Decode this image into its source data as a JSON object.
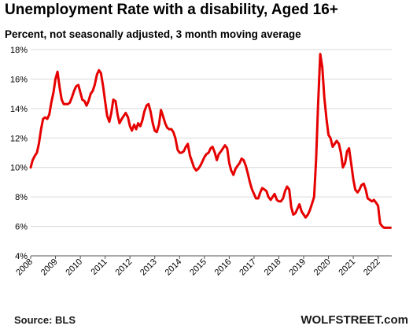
{
  "title": "Unemployment Rate with a disability,  Aged 16+",
  "subtitle": "Percent, not seasonally adjusted, 3 month moving average",
  "source": "Source: BLS",
  "watermark": "WOLFSTREET.com",
  "colors": {
    "line": "#e60000",
    "grid": "#d9d9d9",
    "axis": "#555555"
  },
  "chart_data": {
    "type": "line",
    "title": "Unemployment Rate with a disability,  Aged 16+",
    "subtitle": "Percent, not seasonally adjusted, 3 month moving average",
    "xlabel": "",
    "ylabel": "",
    "xlim": [
      2008,
      2022.55
    ],
    "ylim": [
      4,
      18
    ],
    "grid": "horizontal",
    "x_ticks": [
      "2008",
      "2009",
      "2010",
      "2011",
      "2012",
      "2013",
      "2014",
      "2015",
      "2016",
      "2017",
      "2018",
      "2019",
      "2020",
      "2021",
      "2022"
    ],
    "y_ticks": [
      "4%",
      "6%",
      "8%",
      "10%",
      "12%",
      "14%",
      "16%",
      "18%"
    ],
    "series": [
      {
        "x": [
          2008.0,
          2008.08,
          2008.17,
          2008.25,
          2008.33,
          2008.42,
          2008.5,
          2008.58,
          2008.67,
          2008.75,
          2008.83,
          2008.92,
          2009.0,
          2009.08,
          2009.17,
          2009.25,
          2009.33,
          2009.42,
          2009.5,
          2009.58,
          2009.67,
          2009.75,
          2009.83,
          2009.92,
          2010.0,
          2010.08,
          2010.17,
          2010.25,
          2010.33,
          2010.42,
          2010.5,
          2010.58,
          2010.67,
          2010.75,
          2010.83,
          2010.92,
          2011.0,
          2011.08,
          2011.17,
          2011.25,
          2011.33,
          2011.42,
          2011.5,
          2011.58,
          2011.67,
          2011.75,
          2011.83,
          2011.92,
          2012.0,
          2012.08,
          2012.17,
          2012.25,
          2012.33,
          2012.42,
          2012.5,
          2012.58,
          2012.67,
          2012.75,
          2012.83,
          2012.92,
          2013.0,
          2013.08,
          2013.17,
          2013.25,
          2013.33,
          2013.42,
          2013.5,
          2013.58,
          2013.67,
          2013.75,
          2013.83,
          2013.92,
          2014.0,
          2014.08,
          2014.17,
          2014.25,
          2014.33,
          2014.42,
          2014.5,
          2014.58,
          2014.67,
          2014.75,
          2014.83,
          2014.92,
          2015.0,
          2015.08,
          2015.17,
          2015.25,
          2015.33,
          2015.42,
          2015.5,
          2015.58,
          2015.67,
          2015.75,
          2015.83,
          2015.92,
          2016.0,
          2016.08,
          2016.17,
          2016.25,
          2016.33,
          2016.42,
          2016.5,
          2016.58,
          2016.67,
          2016.75,
          2016.83,
          2016.92,
          2017.0,
          2017.08,
          2017.17,
          2017.25,
          2017.33,
          2017.42,
          2017.5,
          2017.58,
          2017.67,
          2017.75,
          2017.83,
          2017.92,
          2018.0,
          2018.08,
          2018.17,
          2018.25,
          2018.33,
          2018.42,
          2018.5,
          2018.58,
          2018.67,
          2018.75,
          2018.83,
          2018.92,
          2019.0,
          2019.08,
          2019.17,
          2019.25,
          2019.33,
          2019.42,
          2019.5,
          2019.58,
          2019.67,
          2019.75,
          2019.83,
          2019.92,
          2020.0,
          2020.08,
          2020.17,
          2020.25,
          2020.33,
          2020.42,
          2020.5,
          2020.58,
          2020.67,
          2020.75,
          2020.83,
          2020.92,
          2021.0,
          2021.08,
          2021.17,
          2021.25,
          2021.33,
          2021.42,
          2021.5,
          2021.58,
          2021.67,
          2021.75,
          2021.83,
          2021.92,
          2022.0,
          2022.08,
          2022.17,
          2022.25,
          2022.33,
          2022.42,
          2022.5
        ],
        "values": [
          10.0,
          10.5,
          10.8,
          11.0,
          11.6,
          12.6,
          13.3,
          13.4,
          13.3,
          13.6,
          14.4,
          15.1,
          16.0,
          16.5,
          15.4,
          14.6,
          14.3,
          14.3,
          14.3,
          14.4,
          14.8,
          15.2,
          15.5,
          15.6,
          15.1,
          14.6,
          14.5,
          14.2,
          14.5,
          15.0,
          15.2,
          15.6,
          16.3,
          16.6,
          16.4,
          15.5,
          14.5,
          13.5,
          13.1,
          13.7,
          14.6,
          14.5,
          13.6,
          13.0,
          13.3,
          13.5,
          13.7,
          13.4,
          12.8,
          12.5,
          12.9,
          12.6,
          13.0,
          12.8,
          13.2,
          13.8,
          14.2,
          14.3,
          13.8,
          13.0,
          12.5,
          12.4,
          12.9,
          13.9,
          13.5,
          13.0,
          12.7,
          12.6,
          12.6,
          12.4,
          12.0,
          11.2,
          11.0,
          11.0,
          11.1,
          11.4,
          11.6,
          10.8,
          10.4,
          10.0,
          9.8,
          9.9,
          10.1,
          10.4,
          10.7,
          10.9,
          11.0,
          11.3,
          11.4,
          11.0,
          10.5,
          10.9,
          11.1,
          11.3,
          11.5,
          11.3,
          10.3,
          9.8,
          9.5,
          9.9,
          10.1,
          10.3,
          10.6,
          10.5,
          10.1,
          9.6,
          9.0,
          8.5,
          8.2,
          7.9,
          7.9,
          8.3,
          8.6,
          8.5,
          8.4,
          8.0,
          7.8,
          8.0,
          8.2,
          7.8,
          7.7,
          7.7,
          7.9,
          8.4,
          8.7,
          8.5,
          7.3,
          6.8,
          6.9,
          7.2,
          7.5,
          7.0,
          6.8,
          6.6,
          6.8,
          7.1,
          7.5,
          8.0,
          10.5,
          14.2,
          17.7,
          16.8,
          14.8,
          13.3,
          12.2,
          12.0,
          11.4,
          11.6,
          11.8,
          11.6,
          11.0,
          10.0,
          10.3,
          11.1,
          11.3,
          10.2,
          9.2,
          8.5,
          8.3,
          8.5,
          8.8,
          8.9,
          8.5,
          7.9,
          7.8,
          7.7,
          7.8,
          7.6,
          7.4,
          6.2,
          6.0,
          5.9,
          5.9,
          5.9,
          5.9
        ]
      }
    ]
  }
}
